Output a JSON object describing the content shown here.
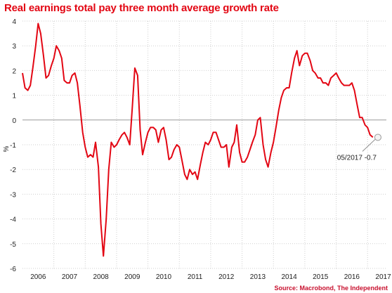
{
  "title": "Real earnings total pay three month average growth rate",
  "source": "Source: Macrobond, The Independent",
  "colors": {
    "title": "#e30613",
    "line": "#e30613",
    "zero_line": "#999999",
    "grid": "#cfcfcf",
    "text": "#222222",
    "source": "#c8102e"
  },
  "chart_data": {
    "type": "line",
    "title": "Real earnings total pay three month average growth rate",
    "xlabel": "",
    "ylabel": "%",
    "ylim": [
      -6,
      4
    ],
    "xlim": [
      2006,
      2017.6
    ],
    "y_ticks": [
      4,
      3,
      2,
      1,
      0,
      -1,
      -2,
      -3,
      -4,
      -5,
      -6
    ],
    "x_tick_labels": [
      "2006",
      "2007",
      "2008",
      "2009",
      "2010",
      "2011",
      "2012",
      "2013",
      "2014",
      "2015",
      "2016",
      "2017"
    ],
    "grid": true,
    "annotation": {
      "text": "05/2017 -0.7",
      "x": 2017.33,
      "y": -0.7
    },
    "series": [
      {
        "points": [
          [
            2006.0,
            1.9
          ],
          [
            2006.08,
            1.3
          ],
          [
            2006.17,
            1.2
          ],
          [
            2006.25,
            1.4
          ],
          [
            2006.33,
            2.1
          ],
          [
            2006.42,
            3.0
          ],
          [
            2006.5,
            3.9
          ],
          [
            2006.58,
            3.5
          ],
          [
            2006.67,
            2.6
          ],
          [
            2006.75,
            1.7
          ],
          [
            2006.83,
            1.8
          ],
          [
            2006.92,
            2.2
          ],
          [
            2007.0,
            2.5
          ],
          [
            2007.08,
            3.0
          ],
          [
            2007.17,
            2.8
          ],
          [
            2007.25,
            2.5
          ],
          [
            2007.33,
            1.6
          ],
          [
            2007.42,
            1.5
          ],
          [
            2007.5,
            1.5
          ],
          [
            2007.58,
            1.8
          ],
          [
            2007.67,
            1.9
          ],
          [
            2007.75,
            1.5
          ],
          [
            2007.83,
            0.6
          ],
          [
            2007.92,
            -0.5
          ],
          [
            2008.0,
            -1.1
          ],
          [
            2008.08,
            -1.5
          ],
          [
            2008.17,
            -1.4
          ],
          [
            2008.25,
            -1.5
          ],
          [
            2008.33,
            -0.9
          ],
          [
            2008.42,
            -1.9
          ],
          [
            2008.5,
            -4.2
          ],
          [
            2008.58,
            -5.5
          ],
          [
            2008.67,
            -4.0
          ],
          [
            2008.75,
            -2.0
          ],
          [
            2008.83,
            -0.9
          ],
          [
            2008.92,
            -1.1
          ],
          [
            2009.0,
            -1.0
          ],
          [
            2009.08,
            -0.8
          ],
          [
            2009.17,
            -0.6
          ],
          [
            2009.25,
            -0.5
          ],
          [
            2009.33,
            -0.7
          ],
          [
            2009.42,
            -1.0
          ],
          [
            2009.5,
            0.5
          ],
          [
            2009.58,
            2.1
          ],
          [
            2009.67,
            1.8
          ],
          [
            2009.75,
            -0.4
          ],
          [
            2009.83,
            -1.4
          ],
          [
            2009.92,
            -0.9
          ],
          [
            2010.0,
            -0.5
          ],
          [
            2010.08,
            -0.3
          ],
          [
            2010.17,
            -0.3
          ],
          [
            2010.25,
            -0.4
          ],
          [
            2010.33,
            -0.9
          ],
          [
            2010.42,
            -0.4
          ],
          [
            2010.5,
            -0.3
          ],
          [
            2010.58,
            -0.8
          ],
          [
            2010.67,
            -1.6
          ],
          [
            2010.75,
            -1.5
          ],
          [
            2010.83,
            -1.2
          ],
          [
            2010.92,
            -1.0
          ],
          [
            2011.0,
            -1.1
          ],
          [
            2011.08,
            -1.6
          ],
          [
            2011.17,
            -2.2
          ],
          [
            2011.25,
            -2.4
          ],
          [
            2011.33,
            -2.0
          ],
          [
            2011.42,
            -2.2
          ],
          [
            2011.5,
            -2.1
          ],
          [
            2011.58,
            -2.4
          ],
          [
            2011.67,
            -1.8
          ],
          [
            2011.75,
            -1.3
          ],
          [
            2011.83,
            -0.9
          ],
          [
            2011.92,
            -1.0
          ],
          [
            2012.0,
            -0.8
          ],
          [
            2012.08,
            -0.5
          ],
          [
            2012.17,
            -0.5
          ],
          [
            2012.25,
            -0.8
          ],
          [
            2012.33,
            -1.1
          ],
          [
            2012.42,
            -1.1
          ],
          [
            2012.5,
            -1.0
          ],
          [
            2012.58,
            -1.9
          ],
          [
            2012.67,
            -1.1
          ],
          [
            2012.75,
            -0.9
          ],
          [
            2012.83,
            -0.2
          ],
          [
            2012.92,
            -1.3
          ],
          [
            2013.0,
            -1.7
          ],
          [
            2013.08,
            -1.7
          ],
          [
            2013.17,
            -1.5
          ],
          [
            2013.25,
            -1.2
          ],
          [
            2013.33,
            -0.9
          ],
          [
            2013.42,
            -0.6
          ],
          [
            2013.5,
            0.0
          ],
          [
            2013.58,
            0.1
          ],
          [
            2013.67,
            -1.0
          ],
          [
            2013.75,
            -1.6
          ],
          [
            2013.83,
            -1.9
          ],
          [
            2013.92,
            -1.3
          ],
          [
            2014.0,
            -0.9
          ],
          [
            2014.08,
            -0.3
          ],
          [
            2014.17,
            0.4
          ],
          [
            2014.25,
            0.9
          ],
          [
            2014.33,
            1.2
          ],
          [
            2014.42,
            1.3
          ],
          [
            2014.5,
            1.3
          ],
          [
            2014.58,
            1.9
          ],
          [
            2014.67,
            2.5
          ],
          [
            2014.75,
            2.8
          ],
          [
            2014.83,
            2.2
          ],
          [
            2014.92,
            2.6
          ],
          [
            2015.0,
            2.7
          ],
          [
            2015.08,
            2.7
          ],
          [
            2015.17,
            2.4
          ],
          [
            2015.25,
            2.0
          ],
          [
            2015.33,
            1.9
          ],
          [
            2015.42,
            1.7
          ],
          [
            2015.5,
            1.7
          ],
          [
            2015.58,
            1.5
          ],
          [
            2015.67,
            1.5
          ],
          [
            2015.75,
            1.4
          ],
          [
            2015.83,
            1.7
          ],
          [
            2015.92,
            1.8
          ],
          [
            2016.0,
            1.9
          ],
          [
            2016.08,
            1.7
          ],
          [
            2016.17,
            1.5
          ],
          [
            2016.25,
            1.4
          ],
          [
            2016.33,
            1.4
          ],
          [
            2016.42,
            1.4
          ],
          [
            2016.5,
            1.5
          ],
          [
            2016.58,
            1.2
          ],
          [
            2016.67,
            0.6
          ],
          [
            2016.75,
            0.1
          ],
          [
            2016.83,
            0.1
          ],
          [
            2016.92,
            -0.2
          ],
          [
            2017.0,
            -0.3
          ],
          [
            2017.08,
            -0.6
          ],
          [
            2017.17,
            -0.7
          ]
        ]
      }
    ]
  }
}
